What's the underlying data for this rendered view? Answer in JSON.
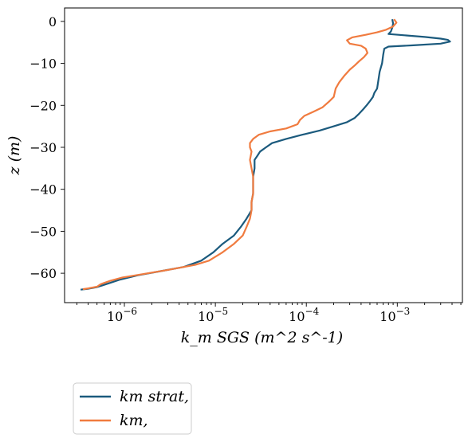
{
  "chart_data": {
    "type": "line",
    "xscale": "log",
    "xlim": [
      2.2e-07,
      0.0052
    ],
    "ylim": [
      -67,
      3.2
    ],
    "xlabel": "k_m SGS (m^2 s^-1)",
    "ylabel": "z (m)",
    "x_ticks": [
      {
        "value": 1e-06,
        "base": "10",
        "exp": "−6"
      },
      {
        "value": 1e-05,
        "base": "10",
        "exp": "−5"
      },
      {
        "value": 0.0001,
        "base": "10",
        "exp": "−4"
      },
      {
        "value": 0.001,
        "base": "10",
        "exp": "−3"
      }
    ],
    "y_ticks": [
      0,
      -10,
      -20,
      -30,
      -40,
      -50,
      -60
    ],
    "y_tick_labels": [
      "0",
      "−10",
      "−20",
      "−30",
      "−40",
      "−50",
      "−60"
    ],
    "grid": false,
    "legend_position": "bottom-left outside",
    "series": [
      {
        "name": "km strat,",
        "color": "#1b5a7d",
        "points": [
          [
            0.00088,
            0.5
          ],
          [
            0.0009,
            -0.5
          ],
          [
            0.00088,
            -1.5
          ],
          [
            0.00085,
            -2.4
          ],
          [
            0.0008,
            -3.0
          ],
          [
            0.0012,
            -3.3
          ],
          [
            0.002,
            -3.7
          ],
          [
            0.003,
            -4.1
          ],
          [
            0.0036,
            -4.4
          ],
          [
            0.0038,
            -4.8
          ],
          [
            0.003,
            -5.3
          ],
          [
            0.0015,
            -5.7
          ],
          [
            0.0008,
            -6.0
          ],
          [
            0.00072,
            -6.5
          ],
          [
            0.0007,
            -8
          ],
          [
            0.00068,
            -10
          ],
          [
            0.00064,
            -12
          ],
          [
            0.00062,
            -14
          ],
          [
            0.0006,
            -16
          ],
          [
            0.00056,
            -17
          ],
          [
            0.00054,
            -18
          ],
          [
            0.0005,
            -19
          ],
          [
            0.00046,
            -20
          ],
          [
            0.00042,
            -21
          ],
          [
            0.00038,
            -22
          ],
          [
            0.00034,
            -23
          ],
          [
            0.00028,
            -24
          ],
          [
            0.0002,
            -25
          ],
          [
            0.00014,
            -26
          ],
          [
            9e-05,
            -27
          ],
          [
            6e-05,
            -28
          ],
          [
            4.2e-05,
            -29
          ],
          [
            3.6e-05,
            -30
          ],
          [
            3.1e-05,
            -31
          ],
          [
            2.9e-05,
            -32
          ],
          [
            2.7e-05,
            -33
          ],
          [
            2.7e-05,
            -35
          ],
          [
            2.6e-05,
            -37
          ],
          [
            2.6e-05,
            -39
          ],
          [
            2.6e-05,
            -41
          ],
          [
            2.5e-05,
            -43
          ],
          [
            2.5e-05,
            -45
          ],
          [
            2.2e-05,
            -47
          ],
          [
            1.9e-05,
            -49
          ],
          [
            1.6e-05,
            -51
          ],
          [
            1.2e-05,
            -53
          ],
          [
            9.5e-06,
            -55
          ],
          [
            7e-06,
            -57
          ],
          [
            4.5e-06,
            -58.5
          ],
          [
            2.5e-06,
            -59.5
          ],
          [
            1.4e-06,
            -60.5
          ],
          [
            9e-07,
            -61.5
          ],
          [
            6.5e-07,
            -62.5
          ],
          [
            5e-07,
            -63.3
          ],
          [
            4e-07,
            -63.7
          ],
          [
            3.3e-07,
            -63.9
          ]
        ]
      },
      {
        "name": "km,",
        "color": "#f07b3f",
        "points": [
          [
            0.00092,
            0.5
          ],
          [
            0.00098,
            -0.3
          ],
          [
            0.0009,
            -1.2
          ],
          [
            0.00075,
            -2.0
          ],
          [
            0.0006,
            -2.6
          ],
          [
            0.00045,
            -3.2
          ],
          [
            0.00032,
            -3.8
          ],
          [
            0.00028,
            -4.5
          ],
          [
            0.0003,
            -5.3
          ],
          [
            0.0004,
            -5.8
          ],
          [
            0.00045,
            -6.5
          ],
          [
            0.00047,
            -7.5
          ],
          [
            0.00043,
            -8.5
          ],
          [
            0.00038,
            -9.5
          ],
          [
            0.00034,
            -10.5
          ],
          [
            0.0003,
            -11.5
          ],
          [
            0.00026,
            -13
          ],
          [
            0.00023,
            -14.5
          ],
          [
            0.00021,
            -16
          ],
          [
            0.0002,
            -18
          ],
          [
            0.00018,
            -19
          ],
          [
            0.00015,
            -20.5
          ],
          [
            0.00012,
            -21.5
          ],
          [
            9.5e-05,
            -22.5
          ],
          [
            8.5e-05,
            -23.5
          ],
          [
            8e-05,
            -24.5
          ],
          [
            6e-05,
            -25.5
          ],
          [
            4e-05,
            -26.2
          ],
          [
            3e-05,
            -27
          ],
          [
            2.6e-05,
            -28
          ],
          [
            2.4e-05,
            -29
          ],
          [
            2.4e-05,
            -30
          ],
          [
            2.5e-05,
            -31
          ],
          [
            2.4e-05,
            -33
          ],
          [
            2.5e-05,
            -35
          ],
          [
            2.6e-05,
            -37
          ],
          [
            2.6e-05,
            -39
          ],
          [
            2.6e-05,
            -41
          ],
          [
            2.5e-05,
            -43
          ],
          [
            2.5e-05,
            -45
          ],
          [
            2.4e-05,
            -47
          ],
          [
            2.2e-05,
            -49
          ],
          [
            2e-05,
            -51
          ],
          [
            1.6e-05,
            -53
          ],
          [
            1.2e-05,
            -55
          ],
          [
            8.5e-06,
            -57
          ],
          [
            6e-06,
            -58
          ],
          [
            3e-06,
            -59.2
          ],
          [
            1.6e-06,
            -60.2
          ],
          [
            9.5e-07,
            -61
          ],
          [
            7e-07,
            -61.8
          ],
          [
            5.5e-07,
            -62.6
          ],
          [
            5e-07,
            -63.2
          ],
          [
            4e-07,
            -63.6
          ],
          [
            3.5e-07,
            -63.8
          ]
        ]
      }
    ]
  }
}
